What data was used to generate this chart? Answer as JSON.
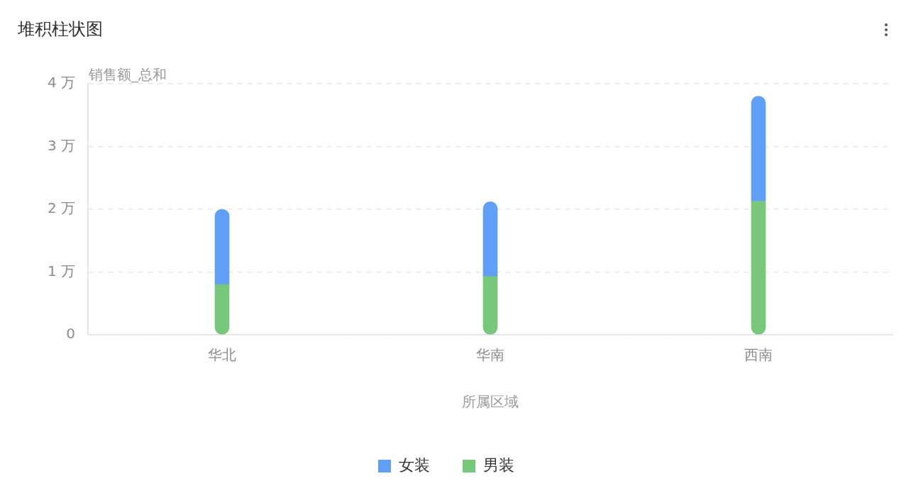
{
  "chart_data": {
    "type": "bar",
    "title": "堆积柱状图",
    "xlabel": "所属区域",
    "ylabel": "销售额_总和",
    "categories": [
      "华北",
      "华南",
      "西南"
    ],
    "series": [
      {
        "name": "男装",
        "color": "#78c87c",
        "values": [
          0.8,
          0.93,
          2.13
        ]
      },
      {
        "name": "女装",
        "color": "#5f9ff7",
        "values": [
          1.2,
          1.19,
          1.67
        ]
      }
    ],
    "stacked": true,
    "ylim": [
      0,
      4
    ],
    "yticks": [
      0,
      {
        "value": 1,
        "label": "1 万"
      },
      {
        "value": 2,
        "label": "2 万"
      },
      {
        "value": 3,
        "label": "3 万"
      },
      {
        "value": 4,
        "label": "4 万"
      }
    ],
    "grid": "y",
    "legend": "bottom"
  }
}
